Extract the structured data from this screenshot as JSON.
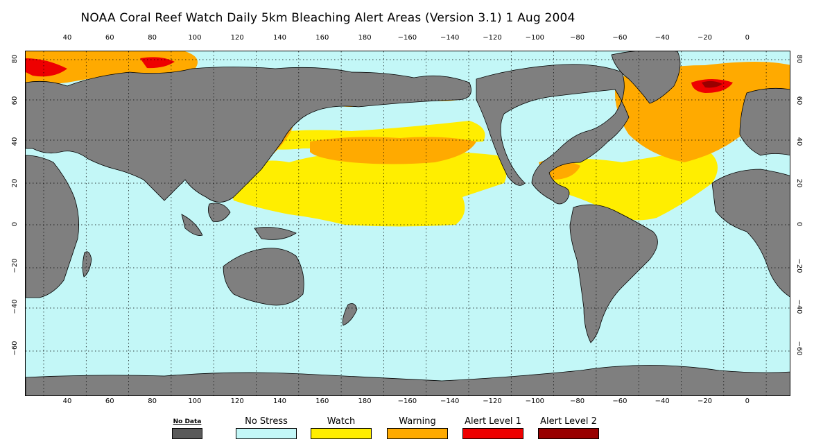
{
  "title": "NOAA Coral Reef Watch Daily 5km Bleaching Alert Areas (Version 3.1)   1 Aug 2004",
  "map": {
    "lon_labels": [
      "40",
      "60",
      "80",
      "100",
      "120",
      "140",
      "160",
      "180",
      "−160",
      "−140",
      "−120",
      "−100",
      "−80",
      "−60",
      "−40",
      "−20",
      "0"
    ],
    "lat_labels": [
      "80",
      "60",
      "40",
      "20",
      "0",
      "−20",
      "−40",
      "−60"
    ],
    "colors": {
      "land": "#7f7f7f",
      "no_stress": "#c3f7f7",
      "watch": "#ffee00",
      "warning": "#ffaa00",
      "alert_level_1": "#ee0000",
      "alert_level_2": "#990000"
    }
  },
  "legend": [
    {
      "label": "No Data",
      "color": "#5a5a5a"
    },
    {
      "label": "No Stress",
      "color": "#c3f7f7"
    },
    {
      "label": "Watch",
      "color": "#ffee00"
    },
    {
      "label": "Warning",
      "color": "#ffaa00"
    },
    {
      "label": "Alert Level 1",
      "color": "#ee0000"
    },
    {
      "label": "Alert Level 2",
      "color": "#990000"
    }
  ]
}
